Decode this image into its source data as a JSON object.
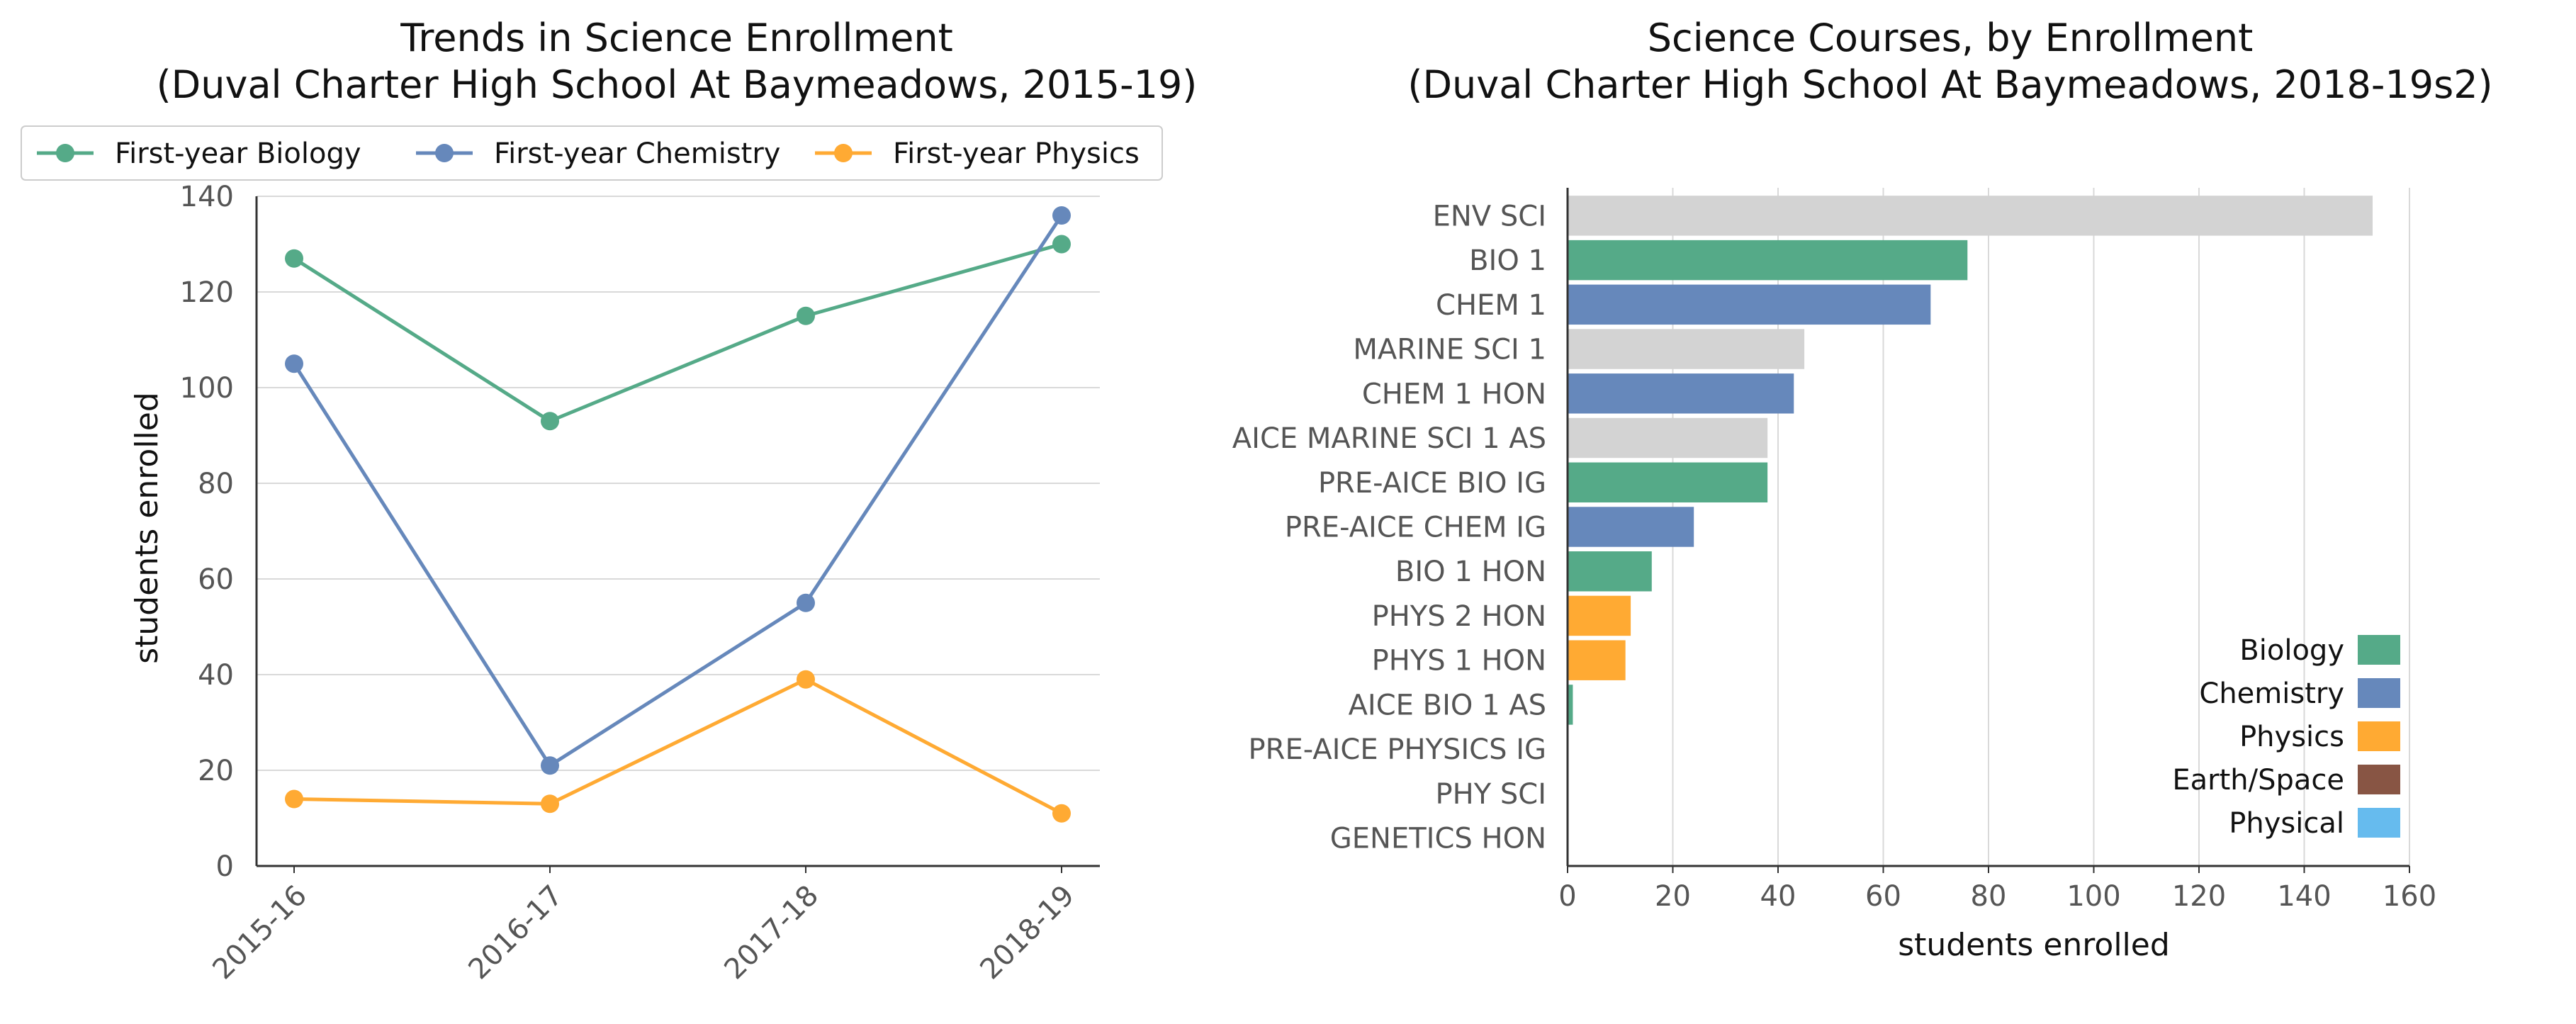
{
  "chart_data": [
    {
      "type": "line",
      "title": "Trends in Science Enrollment",
      "subtitle": "(Duval Charter High School At Baymeadows, 2015-19)",
      "xlabel": "",
      "ylabel": "students enrolled",
      "categories": [
        "2015-16",
        "2016-17",
        "2017-18",
        "2018-19"
      ],
      "ylim": [
        0,
        140
      ],
      "yticks": [
        0,
        20,
        40,
        60,
        80,
        100,
        120,
        140
      ],
      "grid": true,
      "legend_position": "top",
      "series": [
        {
          "name": "First-year Biology",
          "color": "#55aa88",
          "values": [
            127,
            93,
            115,
            130
          ]
        },
        {
          "name": "First-year Chemistry",
          "color": "#6688bb",
          "values": [
            105,
            21,
            55,
            136
          ]
        },
        {
          "name": "First-year Physics",
          "color": "#ffaa33",
          "values": [
            14,
            13,
            39,
            11
          ]
        }
      ]
    },
    {
      "type": "bar",
      "orientation": "horizontal",
      "title": "Science Courses, by Enrollment",
      "subtitle": "(Duval Charter High School At Baymeadows, 2018-19s2)",
      "xlabel": "students enrolled",
      "ylabel": "",
      "xlim": [
        0,
        160
      ],
      "xticks": [
        0,
        20,
        40,
        60,
        80,
        100,
        120,
        140,
        160
      ],
      "grid": true,
      "legend_position": "bottom-right",
      "bars": [
        {
          "label": "ENV SCI",
          "value": 153,
          "group": "Other"
        },
        {
          "label": "BIO 1",
          "value": 76,
          "group": "Biology"
        },
        {
          "label": "CHEM 1",
          "value": 69,
          "group": "Chemistry"
        },
        {
          "label": "MARINE SCI 1",
          "value": 45,
          "group": "Other"
        },
        {
          "label": "CHEM 1 HON",
          "value": 43,
          "group": "Chemistry"
        },
        {
          "label": "AICE MARINE SCI 1 AS",
          "value": 38,
          "group": "Other"
        },
        {
          "label": "PRE-AICE BIO IG",
          "value": 38,
          "group": "Biology"
        },
        {
          "label": "PRE-AICE CHEM IG",
          "value": 24,
          "group": "Chemistry"
        },
        {
          "label": "BIO 1 HON",
          "value": 16,
          "group": "Biology"
        },
        {
          "label": "PHYS 2 HON",
          "value": 12,
          "group": "Physics"
        },
        {
          "label": "PHYS 1 HON",
          "value": 11,
          "group": "Physics"
        },
        {
          "label": "AICE BIO 1 AS",
          "value": 1,
          "group": "Biology"
        },
        {
          "label": "PRE-AICE PHYSICS IG",
          "value": 0,
          "group": "Physics"
        },
        {
          "label": "PHY SCI",
          "value": 0,
          "group": "Physical"
        },
        {
          "label": "GENETICS HON",
          "value": 0,
          "group": "Biology"
        }
      ],
      "legend": [
        {
          "name": "Biology",
          "color": "#55aa88"
        },
        {
          "name": "Chemistry",
          "color": "#6688bb"
        },
        {
          "name": "Physics",
          "color": "#ffaa33"
        },
        {
          "name": "Earth/Space",
          "color": "#885544"
        },
        {
          "name": "Physical",
          "color": "#66bbee"
        }
      ],
      "colors": {
        "Biology": "#55aa88",
        "Chemistry": "#6688bb",
        "Physics": "#ffaa33",
        "Earth/Space": "#885544",
        "Physical": "#66bbee",
        "Other": "#d3d3d3"
      }
    }
  ]
}
